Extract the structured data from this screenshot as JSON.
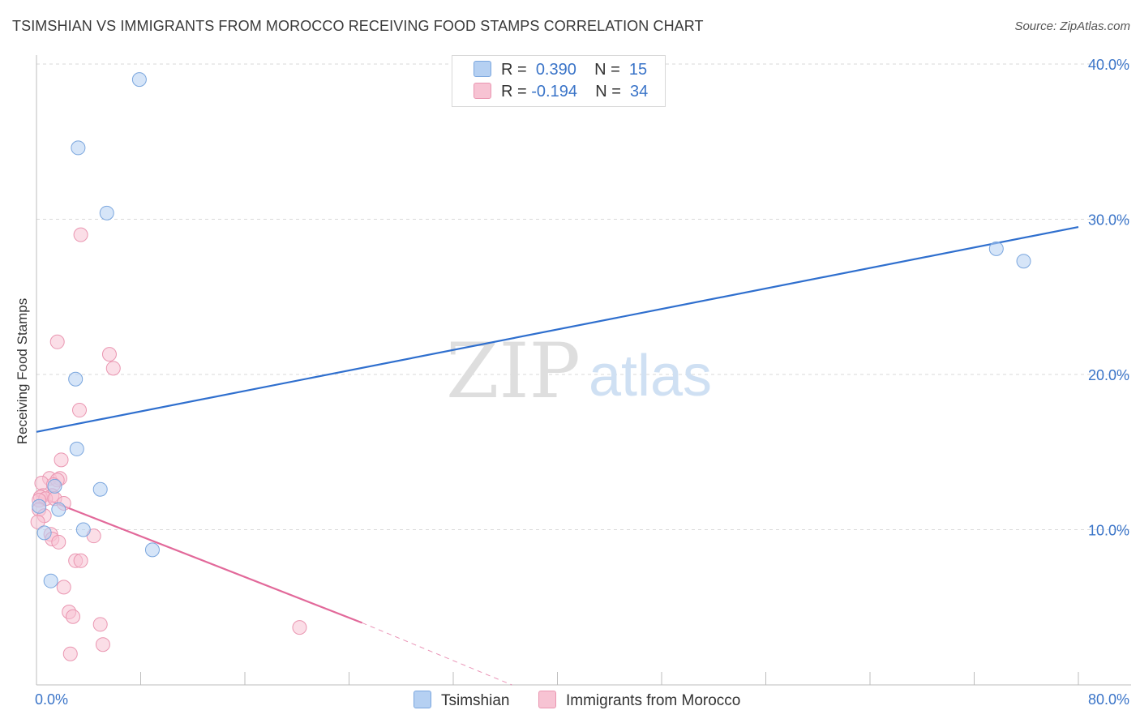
{
  "title": "TSIMSHIAN VS IMMIGRANTS FROM MOROCCO RECEIVING FOOD STAMPS CORRELATION CHART",
  "source": "Source: ZipAtlas.com",
  "watermark": {
    "zip": "ZIP",
    "atlas": "atlas"
  },
  "colors": {
    "blue_fill": "#b5d0f2",
    "blue_stroke": "#7aa6de",
    "blue_line": "#2f6fce",
    "pink_fill": "#f7c3d3",
    "pink_stroke": "#ea96b1",
    "pink_line": "#e2699a",
    "tick_text": "#3a74c8",
    "grid": "#d9d9d9"
  },
  "legend": {
    "rows": [
      {
        "r_label": "R =",
        "r_value": "0.390",
        "n_label": "N =",
        "n_value": "15"
      },
      {
        "r_label": "R =",
        "r_value": "-0.194",
        "n_label": "N =",
        "n_value": "34"
      }
    ]
  },
  "bottom_legend": {
    "series1": "Tsimshian",
    "series2": "Immigrants from Morocco"
  },
  "chart_data": {
    "type": "scatter",
    "title": "TSIMSHIAN VS IMMIGRANTS FROM MOROCCO RECEIVING FOOD STAMPS CORRELATION CHART",
    "xlabel": "",
    "ylabel": "Receiving Food Stamps",
    "xlim": [
      0,
      80
    ],
    "ylim": [
      0,
      40
    ],
    "x_tick_labels": [
      "0.0%",
      "80.0%"
    ],
    "y_ticks": [
      10,
      20,
      30,
      40
    ],
    "y_tick_labels": [
      "10.0%",
      "20.0%",
      "30.0%",
      "40.0%"
    ],
    "grid": true,
    "series": [
      {
        "name": "Tsimshian",
        "r": 0.39,
        "n": 15,
        "points": [
          [
            7.9,
            39.0
          ],
          [
            3.2,
            34.6
          ],
          [
            5.4,
            30.4
          ],
          [
            3.0,
            19.7
          ],
          [
            3.1,
            15.2
          ],
          [
            4.9,
            12.6
          ],
          [
            1.4,
            12.8
          ],
          [
            1.7,
            11.3
          ],
          [
            0.6,
            9.8
          ],
          [
            3.6,
            10.0
          ],
          [
            8.9,
            8.7
          ],
          [
            1.1,
            6.7
          ],
          [
            0.2,
            11.5
          ],
          [
            73.7,
            28.1
          ],
          [
            75.8,
            27.3
          ]
        ],
        "trend": {
          "x": [
            0,
            80
          ],
          "y": [
            16.3,
            29.5
          ]
        }
      },
      {
        "name": "Immigrants from Morocco",
        "r": -0.194,
        "n": 34,
        "points": [
          [
            3.4,
            29.0
          ],
          [
            1.6,
            22.1
          ],
          [
            5.6,
            21.3
          ],
          [
            5.9,
            20.4
          ],
          [
            3.3,
            17.7
          ],
          [
            1.9,
            14.5
          ],
          [
            1.0,
            13.3
          ],
          [
            1.8,
            13.3
          ],
          [
            1.6,
            13.2
          ],
          [
            0.4,
            13.0
          ],
          [
            1.3,
            12.9
          ],
          [
            1.2,
            12.2
          ],
          [
            0.5,
            12.2
          ],
          [
            0.3,
            12.1
          ],
          [
            0.7,
            12.0
          ],
          [
            1.4,
            12.0
          ],
          [
            0.2,
            11.9
          ],
          [
            2.1,
            11.7
          ],
          [
            0.2,
            11.3
          ],
          [
            0.6,
            10.9
          ],
          [
            1.1,
            9.7
          ],
          [
            4.4,
            9.6
          ],
          [
            1.2,
            9.4
          ],
          [
            1.7,
            9.2
          ],
          [
            3.0,
            8.0
          ],
          [
            3.4,
            8.0
          ],
          [
            2.1,
            6.3
          ],
          [
            2.5,
            4.7
          ],
          [
            2.8,
            4.4
          ],
          [
            4.9,
            3.9
          ],
          [
            20.2,
            3.7
          ],
          [
            5.1,
            2.6
          ],
          [
            2.6,
            2.0
          ],
          [
            0.1,
            10.5
          ]
        ],
        "trend": {
          "x": [
            0,
            25
          ],
          "y": [
            12.2,
            4.0
          ]
        },
        "trend_dashed": {
          "x": [
            25,
            36.5
          ],
          "y": [
            4.0,
            0.0
          ]
        }
      }
    ]
  }
}
